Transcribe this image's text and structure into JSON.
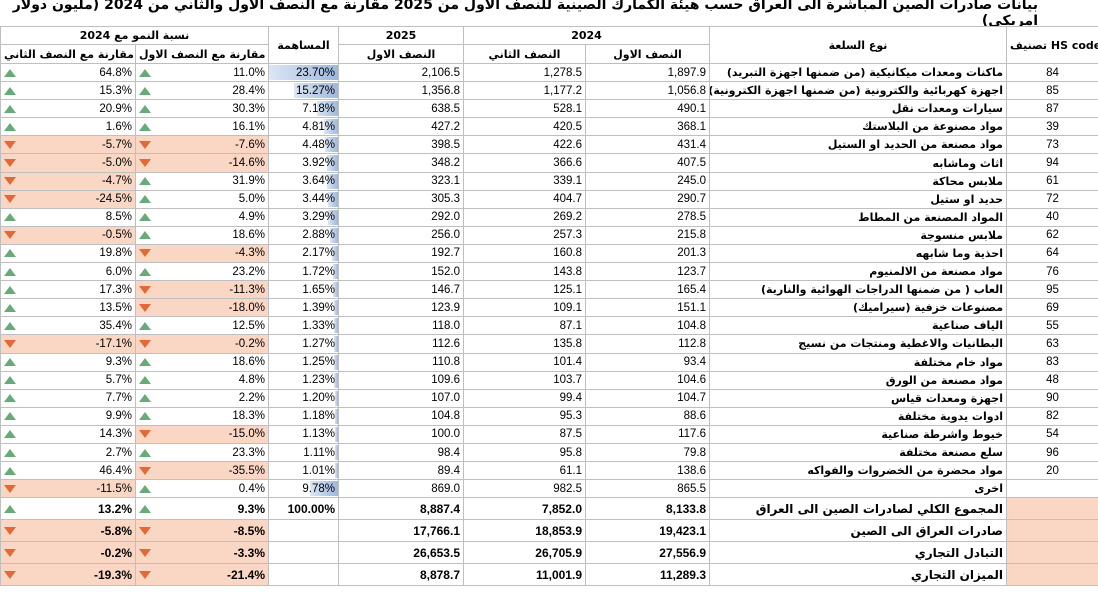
{
  "title": "بيانات صادرات الصين المباشرة الى العراق حسب هيئة الكمارك الصينية للنصف الاول من 2025 مقارنة مع النصف الاول والثاني من 2024 (مليون دولار امريكي)",
  "headers": {
    "hs_code": "تصنيف HS code",
    "commodity": "نوع السلعة",
    "year_2024": "2024",
    "year_2025": "2025",
    "h1": "النصف الاول",
    "h2": "النصف الثاني",
    "h1_2025": "النصف الاول",
    "share": "المساهمة",
    "growth_2024": "نسبة النمو مع 2024",
    "vs_h1": "مقارنة مع النصف الاول",
    "vs_h2": "مقارنة مع النصف الثاني"
  },
  "rows": [
    {
      "hs": "84",
      "name": "ماكنات ومعدات ميكانيكية (من ضمنها اجهزة التبريد)",
      "h1_2024": "1,897.9",
      "h2_2024": "1,278.5",
      "h1_2025": "2,106.5",
      "share": "23.70%",
      "share_pct": 23.7,
      "vs_h1": "11.0%",
      "vs_h2": "64.8%"
    },
    {
      "hs": "85",
      "name": "اجهزة كهربائية والكترونية (من ضمنها اجهزة الكترونية)",
      "h1_2024": "1,056.8",
      "h2_2024": "1,177.2",
      "h1_2025": "1,356.8",
      "share": "15.27%",
      "share_pct": 15.27,
      "vs_h1": "28.4%",
      "vs_h2": "15.3%"
    },
    {
      "hs": "87",
      "name": "سيارات ومعدات نقل",
      "h1_2024": "490.1",
      "h2_2024": "528.1",
      "h1_2025": "638.5",
      "share": "7.18%",
      "share_pct": 7.18,
      "vs_h1": "30.3%",
      "vs_h2": "20.9%"
    },
    {
      "hs": "39",
      "name": "مواد مصنوعة من البلاستك",
      "h1_2024": "368.1",
      "h2_2024": "420.5",
      "h1_2025": "427.2",
      "share": "4.81%",
      "share_pct": 4.81,
      "vs_h1": "16.1%",
      "vs_h2": "1.6%"
    },
    {
      "hs": "73",
      "name": "مواد مصنعة من الحديد او الستيل",
      "h1_2024": "431.4",
      "h2_2024": "422.6",
      "h1_2025": "398.5",
      "share": "4.48%",
      "share_pct": 4.48,
      "vs_h1": "-7.6%",
      "vs_h2": "-5.7%"
    },
    {
      "hs": "94",
      "name": "اثاث وماشابه",
      "h1_2024": "407.5",
      "h2_2024": "366.6",
      "h1_2025": "348.2",
      "share": "3.92%",
      "share_pct": 3.92,
      "vs_h1": "-14.6%",
      "vs_h2": "-5.0%"
    },
    {
      "hs": "61",
      "name": "ملابس محاكة",
      "h1_2024": "245.0",
      "h2_2024": "339.1",
      "h1_2025": "323.1",
      "share": "3.64%",
      "share_pct": 3.64,
      "vs_h1": "31.9%",
      "vs_h2": "-4.7%"
    },
    {
      "hs": "72",
      "name": "حديد او ستيل",
      "h1_2024": "290.7",
      "h2_2024": "404.7",
      "h1_2025": "305.3",
      "share": "3.44%",
      "share_pct": 3.44,
      "vs_h1": "5.0%",
      "vs_h2": "-24.5%"
    },
    {
      "hs": "40",
      "name": "المواد المصنعة من المطاط",
      "h1_2024": "278.5",
      "h2_2024": "269.2",
      "h1_2025": "292.0",
      "share": "3.29%",
      "share_pct": 3.29,
      "vs_h1": "4.9%",
      "vs_h2": "8.5%"
    },
    {
      "hs": "62",
      "name": "ملابس منسوجة",
      "h1_2024": "215.8",
      "h2_2024": "257.3",
      "h1_2025": "256.0",
      "share": "2.88%",
      "share_pct": 2.88,
      "vs_h1": "18.6%",
      "vs_h2": "-0.5%"
    },
    {
      "hs": "64",
      "name": "احذية وما شابهه",
      "h1_2024": "201.3",
      "h2_2024": "160.8",
      "h1_2025": "192.7",
      "share": "2.17%",
      "share_pct": 2.17,
      "vs_h1": "-4.3%",
      "vs_h2": "19.8%"
    },
    {
      "hs": "76",
      "name": "مواد مصنعة من الالمنيوم",
      "h1_2024": "123.7",
      "h2_2024": "143.8",
      "h1_2025": "152.0",
      "share": "1.72%",
      "share_pct": 1.72,
      "vs_h1": "23.2%",
      "vs_h2": "6.0%"
    },
    {
      "hs": "95",
      "name": "العاب ( من ضمنها الدراجات الهوائية والنارية)",
      "h1_2024": "165.4",
      "h2_2024": "125.1",
      "h1_2025": "146.7",
      "share": "1.65%",
      "share_pct": 1.65,
      "vs_h1": "-11.3%",
      "vs_h2": "17.3%"
    },
    {
      "hs": "69",
      "name": "مصنوعات خزفية (سيراميك)",
      "h1_2024": "151.1",
      "h2_2024": "109.1",
      "h1_2025": "123.9",
      "share": "1.39%",
      "share_pct": 1.39,
      "vs_h1": "-18.0%",
      "vs_h2": "13.5%"
    },
    {
      "hs": "55",
      "name": "الياف صناعية",
      "h1_2024": "104.8",
      "h2_2024": "87.1",
      "h1_2025": "118.0",
      "share": "1.33%",
      "share_pct": 1.33,
      "vs_h1": "12.5%",
      "vs_h2": "35.4%"
    },
    {
      "hs": "63",
      "name": "البطانيات والاغطية ومنتجات من نسيج",
      "h1_2024": "112.8",
      "h2_2024": "135.8",
      "h1_2025": "112.6",
      "share": "1.27%",
      "share_pct": 1.27,
      "vs_h1": "-0.2%",
      "vs_h2": "-17.1%"
    },
    {
      "hs": "83",
      "name": "مواد خام مختلفة",
      "h1_2024": "93.4",
      "h2_2024": "101.4",
      "h1_2025": "110.8",
      "share": "1.25%",
      "share_pct": 1.25,
      "vs_h1": "18.6%",
      "vs_h2": "9.3%"
    },
    {
      "hs": "48",
      "name": "مواد مصنعة من الورق",
      "h1_2024": "104.6",
      "h2_2024": "103.7",
      "h1_2025": "109.6",
      "share": "1.23%",
      "share_pct": 1.23,
      "vs_h1": "4.8%",
      "vs_h2": "5.7%"
    },
    {
      "hs": "90",
      "name": "اجهزة ومعدات قياس",
      "h1_2024": "104.7",
      "h2_2024": "99.4",
      "h1_2025": "107.0",
      "share": "1.20%",
      "share_pct": 1.2,
      "vs_h1": "2.2%",
      "vs_h2": "7.7%"
    },
    {
      "hs": "82",
      "name": "ادوات يدوية مختلفة",
      "h1_2024": "88.6",
      "h2_2024": "95.3",
      "h1_2025": "104.8",
      "share": "1.18%",
      "share_pct": 1.18,
      "vs_h1": "18.3%",
      "vs_h2": "9.9%"
    },
    {
      "hs": "54",
      "name": "خيوط واشرطة صناعية",
      "h1_2024": "117.6",
      "h2_2024": "87.5",
      "h1_2025": "100.0",
      "share": "1.13%",
      "share_pct": 1.13,
      "vs_h1": "-15.0%",
      "vs_h2": "14.3%"
    },
    {
      "hs": "96",
      "name": "سلع مصنعة مختلفة",
      "h1_2024": "79.8",
      "h2_2024": "95.8",
      "h1_2025": "98.4",
      "share": "1.11%",
      "share_pct": 1.11,
      "vs_h1": "23.3%",
      "vs_h2": "2.7%"
    },
    {
      "hs": "20",
      "name": "مواد محضرة من الخضروات والفواكه",
      "h1_2024": "138.6",
      "h2_2024": "61.1",
      "h1_2025": "89.4",
      "share": "1.01%",
      "share_pct": 1.01,
      "vs_h1": "-35.5%",
      "vs_h2": "46.4%"
    },
    {
      "hs": "",
      "name": "اخرى",
      "h1_2024": "865.5",
      "h2_2024": "982.5",
      "h1_2025": "869.0",
      "share": "9.78%",
      "share_pct": 9.78,
      "vs_h1": "0.4%",
      "vs_h2": "-11.5%"
    }
  ],
  "totals": [
    {
      "name": "المجموع الكلي لصادرات الصين الى العراق",
      "h1_2024": "8,133.8",
      "h2_2024": "7,852.0",
      "h1_2025": "8,887.4",
      "share": "100.00%",
      "vs_h1": "9.3%",
      "vs_h2": "13.2%"
    },
    {
      "name": "صادرات العراق الى الصين",
      "h1_2024": "19,423.1",
      "h2_2024": "18,853.9",
      "h1_2025": "17,766.1",
      "share": "",
      "vs_h1": "-8.5%",
      "vs_h2": "-5.8%"
    },
    {
      "name": "التبادل التجاري",
      "h1_2024": "27,556.9",
      "h2_2024": "26,705.9",
      "h1_2025": "26,653.5",
      "share": "",
      "vs_h1": "-3.3%",
      "vs_h2": "-0.2%"
    },
    {
      "name": "الميزان التجاري",
      "h1_2024": "11,289.3",
      "h2_2024": "11,001.9",
      "h1_2025": "8,878.7",
      "share": "",
      "vs_h1": "-21.4%",
      "vs_h2": "-19.3%"
    }
  ],
  "colors": {
    "negative_fill": "#fad6c4",
    "up_arrow": "#6aaa7a",
    "down_arrow": "#e06a3a",
    "share_bar": "#9db8dd"
  }
}
